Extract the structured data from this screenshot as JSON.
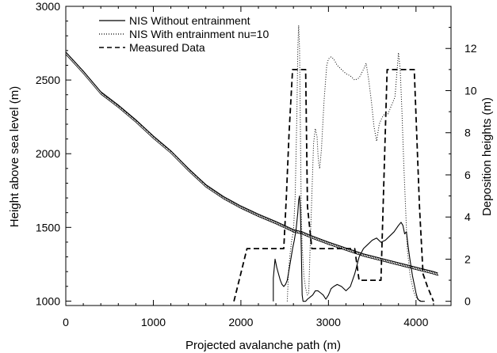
{
  "chart_data": {
    "type": "line",
    "xlabel": "Projected avalanche path (m)",
    "ylabel_left": "Height above sea level (m)",
    "ylabel_right": "Deposition heights (m)",
    "xlim": [
      0,
      4400
    ],
    "ylim_left": [
      970,
      3000
    ],
    "ylim_right": [
      -0.2,
      14
    ],
    "x_ticks": [
      0,
      1000,
      2000,
      3000,
      4000
    ],
    "y_left_ticks": [
      1000,
      1500,
      2000,
      2500,
      3000
    ],
    "y_right_ticks": [
      0,
      2,
      4,
      6,
      8,
      10,
      12
    ],
    "legend": [
      {
        "label": "NIS Without entrainment",
        "style": "solid"
      },
      {
        "label": "NIS With entrainment nu=10",
        "style": "dotted"
      },
      {
        "label": "Measured Data",
        "style": "dashed"
      }
    ],
    "terrain": {
      "axis": "left",
      "x": [
        0,
        200,
        400,
        600,
        800,
        1000,
        1200,
        1400,
        1600,
        1800,
        2000,
        2200,
        2400,
        2600,
        2700,
        2800,
        3000,
        3200,
        3400,
        3600,
        3800,
        4000,
        4200,
        4250
      ],
      "y": [
        2690,
        2560,
        2420,
        2330,
        2230,
        2120,
        2020,
        1900,
        1790,
        1710,
        1645,
        1590,
        1540,
        1485,
        1470,
        1445,
        1400,
        1360,
        1320,
        1290,
        1260,
        1230,
        1200,
        1190
      ]
    },
    "series": [
      {
        "name": "NIS Without entrainment",
        "style": "solid",
        "axis": "right",
        "x": [
          2370,
          2370,
          2390,
          2410,
          2430,
          2450,
          2470,
          2490,
          2510,
          2530,
          2550,
          2570,
          2590,
          2610,
          2630,
          2650,
          2660,
          2670,
          2680,
          2690,
          2700,
          2710,
          2720,
          2730,
          2740,
          2760,
          2790,
          2820,
          2850,
          2880,
          2910,
          2940,
          2970,
          3000,
          3030,
          3060,
          3100,
          3150,
          3200,
          3250,
          3300,
          3350,
          3400,
          3450,
          3500,
          3550,
          3600,
          3650,
          3700,
          3750,
          3800,
          3830,
          3850,
          3870,
          3890,
          3910,
          3930,
          3960,
          4000,
          4020,
          4050,
          4100
        ],
        "y": [
          0,
          1.1,
          2.0,
          1.6,
          1.3,
          1.0,
          0.8,
          0.7,
          0.8,
          1.0,
          1.5,
          2.0,
          2.5,
          2.9,
          3.4,
          4.2,
          4.8,
          5.0,
          4.3,
          2.5,
          0.3,
          0.0,
          0.0,
          0.0,
          0.0,
          0.1,
          0.2,
          0.3,
          0.5,
          0.5,
          0.4,
          0.3,
          0.1,
          0.3,
          0.6,
          0.7,
          0.8,
          0.7,
          0.5,
          0.7,
          1.3,
          2.1,
          2.5,
          2.7,
          2.9,
          3.0,
          2.8,
          2.9,
          3.1,
          3.3,
          3.6,
          3.75,
          3.6,
          3.2,
          3.3,
          2.6,
          2.0,
          1.2,
          0.4,
          0.1,
          0.0,
          0.0
        ]
      },
      {
        "name": "NIS With entrainment nu=10",
        "style": "dotted",
        "axis": "right",
        "x": [
          2530,
          2545,
          2560,
          2580,
          2600,
          2620,
          2640,
          2650,
          2660,
          2670,
          2680,
          2690,
          2700,
          2720,
          2740,
          2760,
          2775,
          2790,
          2810,
          2830,
          2850,
          2870,
          2880,
          2890,
          2900,
          2920,
          2950,
          2980,
          3000,
          3030,
          3060,
          3100,
          3150,
          3200,
          3250,
          3300,
          3350,
          3400,
          3430,
          3460,
          3490,
          3520,
          3550,
          3580,
          3610,
          3640,
          3680,
          3720,
          3760,
          3800,
          3820,
          3840,
          3860,
          3880,
          3900,
          3930,
          3970,
          4000,
          4030,
          4060,
          4080
        ],
        "y": [
          0,
          1.5,
          2.2,
          2.9,
          3.3,
          5,
          9,
          12,
          13.1,
          12,
          8,
          4.2,
          2.6,
          1.2,
          0.6,
          0.3,
          0.4,
          2.5,
          5,
          7.5,
          8.2,
          7.8,
          7,
          6.5,
          6.3,
          7.2,
          9.5,
          11.2,
          11.5,
          11.6,
          11.5,
          11.2,
          11.0,
          10.8,
          10.7,
          10.5,
          10.6,
          11.0,
          11.3,
          10.5,
          9.5,
          8.3,
          7.6,
          8.4,
          8.7,
          8.9,
          8.9,
          9.3,
          9.7,
          11.8,
          11.0,
          9.0,
          6.5,
          4.5,
          2.5,
          1.3,
          0.5,
          0.2,
          0.1,
          0.0,
          0.0
        ]
      },
      {
        "name": "Measured Data",
        "style": "dashed",
        "axis": "right",
        "x": [
          1920,
          2070,
          2490,
          2520,
          2550,
          2590,
          2740,
          2760,
          2810,
          3300,
          3350,
          3370,
          3600,
          3670,
          3980,
          4040,
          4080,
          4130,
          4200
        ],
        "y": [
          0,
          2.5,
          2.5,
          5,
          8,
          11.0,
          11.0,
          4.5,
          2.5,
          2.5,
          1.0,
          1.0,
          1.0,
          11.0,
          11.0,
          4.5,
          1.3,
          0.7,
          0.0
        ]
      }
    ]
  }
}
